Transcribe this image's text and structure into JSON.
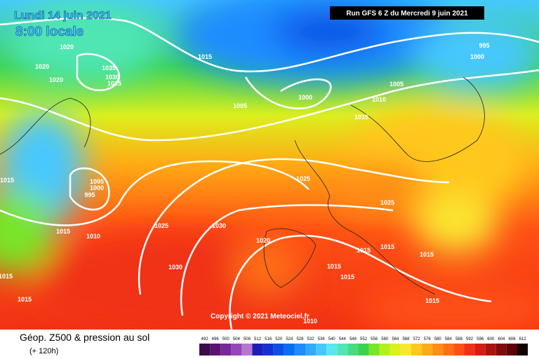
{
  "header": {
    "date": "Lundi 14 juin 2021",
    "time": "8:00 locale",
    "run": "Run GFS 6 Z du Mercredi 9 juin 2021"
  },
  "isobar_labels": [
    "1020",
    "1020",
    "1020",
    "1035",
    "1030",
    "1025",
    "1015",
    "1005",
    "1000",
    "995",
    "1000",
    "1005",
    "1010",
    "1015",
    "1015",
    "1005",
    "1000",
    "995",
    "1025",
    "1025",
    "1015",
    "1010",
    "1025",
    "1030",
    "1020",
    "1015",
    "1015",
    "1015",
    "1030",
    "1015",
    "1015",
    "1015",
    "1015",
    "1015",
    "1010"
  ],
  "copyright": "Copyright © 2021 Meteociel.fr",
  "footer": {
    "title": "Géop. Z500 & pression au sol",
    "subtitle": "(+ 120h)"
  },
  "scale": {
    "ticks": [
      492,
      496,
      500,
      504,
      508,
      512,
      516,
      520,
      524,
      528,
      532,
      536,
      540,
      544,
      548,
      552,
      556,
      560,
      564,
      568,
      572,
      576,
      580,
      584,
      588,
      592,
      596,
      600,
      604,
      608,
      612
    ],
    "colors": [
      "#3c0a46",
      "#5a1470",
      "#78289a",
      "#9646b8",
      "#b478d2",
      "#1e1eb4",
      "#1432d2",
      "#0a50e6",
      "#0a6ef0",
      "#1e8cff",
      "#32aaff",
      "#46c8ff",
      "#5ae6f0",
      "#50e6b4",
      "#46dc82",
      "#3cd250",
      "#78e628",
      "#b4f01e",
      "#dcf01e",
      "#fae632",
      "#ffc81e",
      "#ffaa14",
      "#ff8c14",
      "#ff6e14",
      "#ff5014",
      "#f03214",
      "#d21e14",
      "#aa140f",
      "#820a0a",
      "#5a0505",
      "#140000"
    ]
  }
}
